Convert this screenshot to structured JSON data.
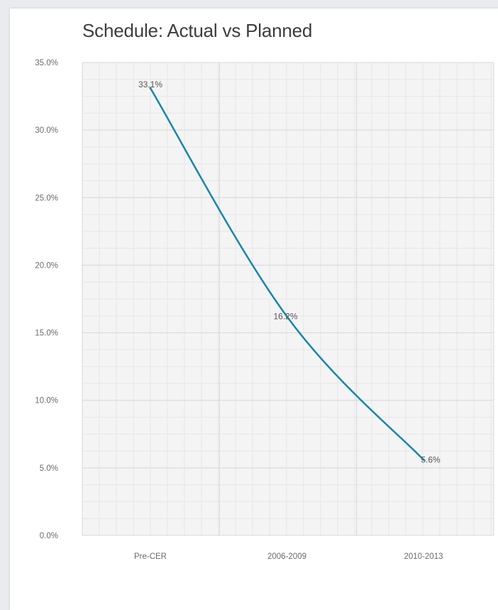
{
  "colors": {
    "line": "#1a86a8",
    "grid": "#d9d9d9",
    "plot_bg": "#f4f4f4"
  },
  "chart_data": {
    "type": "line",
    "title": "Schedule: Actual vs Planned",
    "categories": [
      "Pre-CER",
      "2006-2009",
      "2010-2013"
    ],
    "series": [
      {
        "values": [
          33.1,
          16.2,
          5.6
        ],
        "data_labels": [
          "33.1%",
          "16.2%",
          "5.6%"
        ]
      }
    ],
    "y_ticks": [
      "0.0%",
      "5.0%",
      "10.0%",
      "15.0%",
      "20.0%",
      "25.0%",
      "30.0%",
      "35.0%"
    ],
    "ylim": [
      0,
      35
    ],
    "grid": true,
    "legend": "none"
  }
}
